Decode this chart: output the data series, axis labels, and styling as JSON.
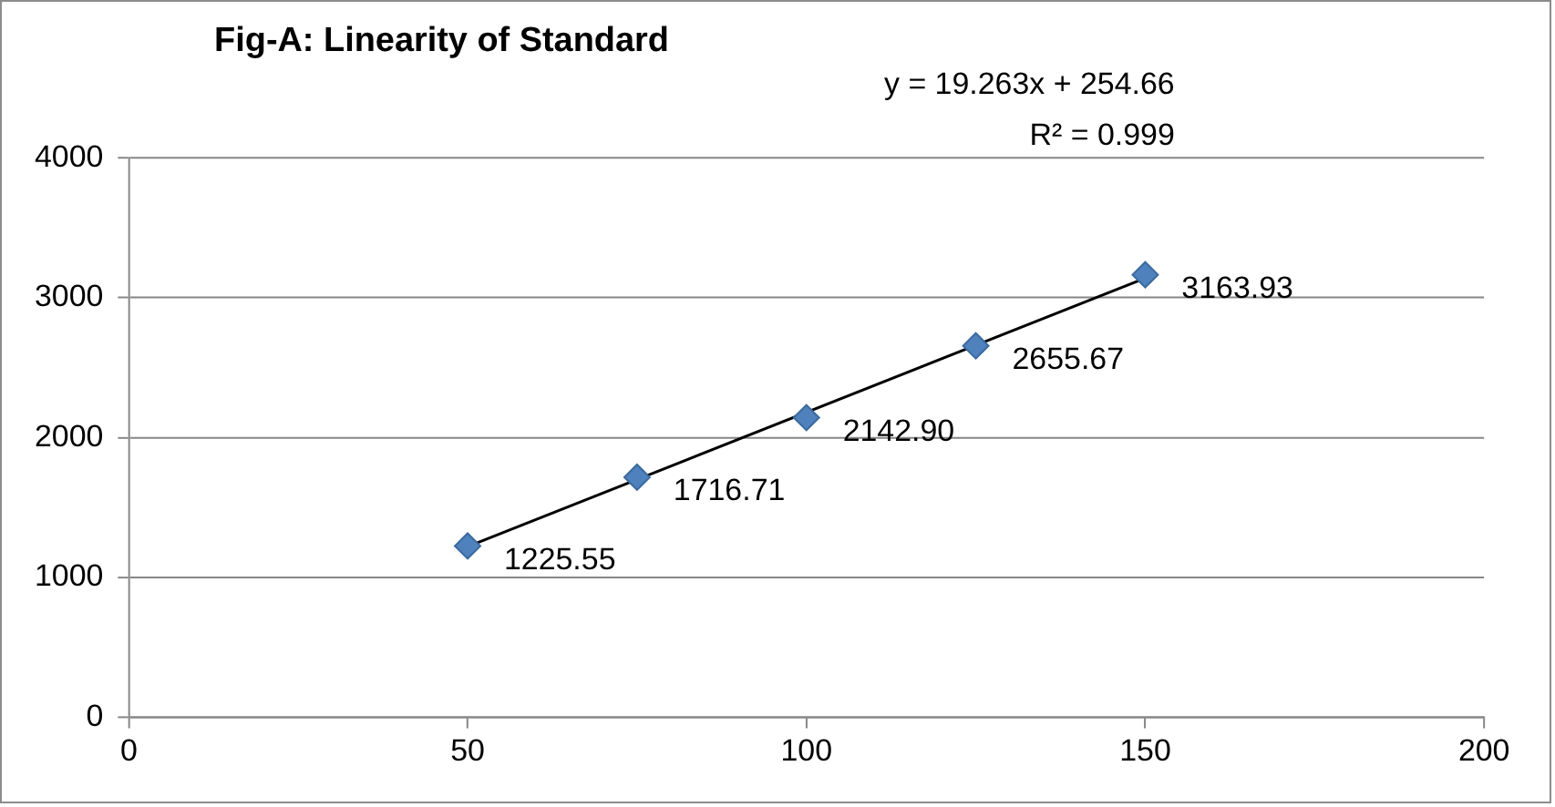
{
  "chart_data": {
    "type": "scatter",
    "title": "Fig-A: Linearity of Standard",
    "annotations": [
      "y = 19.263x + 254.66",
      "R² = 0.999"
    ],
    "series": [
      {
        "color": "#4f81bd",
        "marker": "diamond",
        "x": [
          50,
          75,
          100,
          125,
          150
        ],
        "values": [
          1225.55,
          1716.71,
          2142.9,
          2655.67,
          3163.93
        ],
        "value_labels": [
          "1225.55",
          "1716.71",
          "2142.90",
          "2655.67",
          "3163.93"
        ]
      },
      {
        "type": "line",
        "color": "#000000",
        "marker": "none",
        "line_style": "solid",
        "x": [
          50,
          150
        ],
        "values": [
          1220,
          3140
        ]
      }
    ],
    "xlim": [
      0,
      200
    ],
    "xticks": [
      0,
      50,
      100,
      150,
      200
    ],
    "ylim": [
      0,
      4000
    ],
    "yticks": [
      0,
      1000,
      2000,
      3000,
      4000
    ],
    "grid": "y",
    "legend": false
  }
}
